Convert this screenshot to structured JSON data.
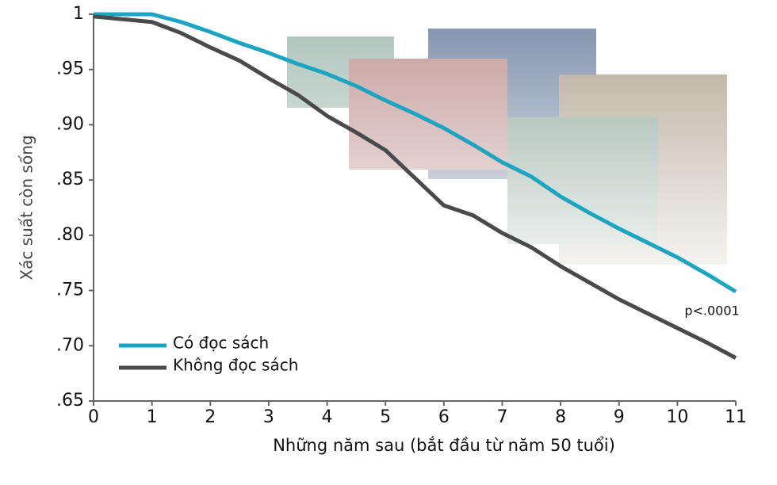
{
  "chart_data": {
    "type": "line",
    "x_label": "Những năm sau (bắt đầu từ năm 50 tuổi)",
    "y_label": "Xác suất còn sống",
    "annotation": "p<.0001",
    "xlim": [
      0,
      11
    ],
    "xticks": [
      0,
      1,
      2,
      3,
      4,
      5,
      6,
      7,
      8,
      9,
      10,
      11
    ],
    "ylim": [
      0.65,
      1
    ],
    "yticks": [
      {
        "value": 0.65,
        "label": ".65"
      },
      {
        "value": 0.7,
        "label": ".70"
      },
      {
        "value": 0.75,
        "label": ".75"
      },
      {
        "value": 0.8,
        "label": ".80"
      },
      {
        "value": 0.85,
        "label": ".85"
      },
      {
        "value": 0.9,
        "label": ".90"
      },
      {
        "value": 0.95,
        "label": ".95"
      },
      1
    ],
    "legend": "bottom-left",
    "x": [
      0,
      1,
      1.5,
      2,
      2.5,
      3,
      3.5,
      4,
      4.5,
      5,
      5.5,
      6,
      6.5,
      7,
      7.5,
      8,
      8.5,
      9,
      9.5,
      10,
      10.5,
      11
    ],
    "series": [
      {
        "name": "Có đọc sách",
        "color": "#1ba5c0",
        "values": [
          1,
          1,
          0.993,
          0.984,
          0.974,
          0.965,
          0.955,
          0.946,
          0.935,
          0.922,
          0.91,
          0.897,
          0.882,
          0.866,
          0.853,
          0.835,
          0.82,
          0.806,
          0.793,
          0.78,
          0.765,
          0.749
        ]
      },
      {
        "name": "Không đọc sách",
        "color": "#4a4a4c",
        "values": [
          0.998,
          0.993,
          0.983,
          0.97,
          0.958,
          0.942,
          0.927,
          0.908,
          0.893,
          0.877,
          0.852,
          0.827,
          0.818,
          0.802,
          0.789,
          0.772,
          0.757,
          0.742,
          0.729,
          0.716,
          0.703,
          0.689
        ]
      }
    ]
  }
}
